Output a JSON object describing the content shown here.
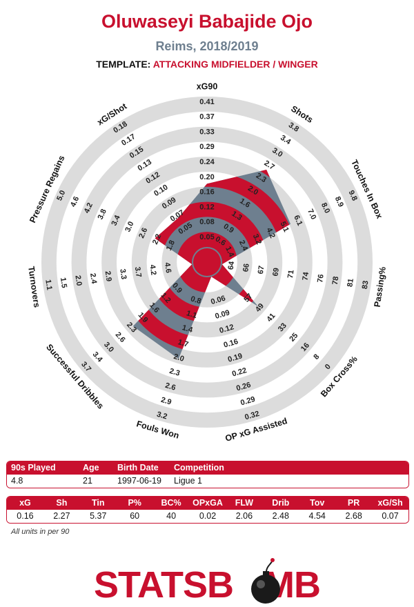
{
  "header": {
    "title": "Oluwaseyi Babajide Ojo",
    "subtitle": "Reims, 2018/2019",
    "template_label": "TEMPLATE:",
    "template_value": "ATTACKING MIDFIELDER / WINGER"
  },
  "colors": {
    "brand_red": "#c8102e",
    "slate": "#6e7f8f",
    "ring_grey": "#dcdcdc"
  },
  "chart_data": {
    "type": "radar",
    "title": "Oluwaseyi Babajide Ojo",
    "axes": [
      {
        "name": "xG90",
        "ticks": [
          "0.05",
          "0.08",
          "0.12",
          "0.16",
          "0.20",
          "0.24",
          "0.29",
          "0.33",
          "0.37",
          "0.41"
        ],
        "value_fraction": 0.42
      },
      {
        "name": "Shots",
        "ticks": [
          "0.6",
          "0.9",
          "1.3",
          "1.6",
          "2.0",
          "2.3",
          "2.7",
          "3.0",
          "3.4",
          "3.8"
        ],
        "value_fraction": 0.63
      },
      {
        "name": "Touches In Box",
        "ticks": [
          "1.4",
          "2.4",
          "3.2",
          "4.2",
          "5.1",
          "6.1",
          "7.0",
          "8.0",
          "8.9",
          "9.8"
        ],
        "value_fraction": 0.51
      },
      {
        "name": "Passing%",
        "ticks": [
          "64",
          "66",
          "67",
          "69",
          "71",
          "74",
          "76",
          "78",
          "81",
          "83"
        ],
        "value_fraction": 0.0
      },
      {
        "name": "Box Cross%",
        "ticks": [
          "57",
          "49",
          "41",
          "33",
          "25",
          "16",
          "8",
          "0"
        ],
        "value_fraction": 0.35
      },
      {
        "name": "OP xG Assisted",
        "ticks": [
          "0.06",
          "0.09",
          "0.12",
          "0.16",
          "0.19",
          "0.22",
          "0.26",
          "0.29",
          "0.32"
        ],
        "value_fraction": 0.0
      },
      {
        "name": "Fouls Won",
        "ticks": [
          "0.8",
          "1.1",
          "1.4",
          "1.7",
          "2.0",
          "2.3",
          "2.6",
          "2.9",
          "3.2"
        ],
        "value_fraction": 0.57
      },
      {
        "name": "Successful Dribbles",
        "ticks": [
          "0.9",
          "1.2",
          "1.6",
          "1.9",
          "2.3",
          "2.6",
          "3.0",
          "3.4",
          "3.7"
        ],
        "value_fraction": 0.55
      },
      {
        "name": "Turnovers",
        "ticks": [
          "4.6",
          "4.2",
          "3.7",
          "3.3",
          "2.9",
          "2.4",
          "2.0",
          "1.5",
          "1.1"
        ],
        "value_fraction": 0.0
      },
      {
        "name": "Pressure Regains",
        "ticks": [
          "1.8",
          "2.2",
          "2.6",
          "3.0",
          "3.4",
          "3.8",
          "4.2",
          "4.6",
          "5.0"
        ],
        "value_fraction": 0.28
      },
      {
        "name": "xG/Shot",
        "ticks": [
          "0.05",
          "0.07",
          "0.09",
          "0.10",
          "0.12",
          "0.13",
          "0.15",
          "0.17",
          "0.18"
        ],
        "value_fraction": 0.25
      }
    ],
    "rings": 10
  },
  "info": {
    "headers": [
      "90s Played",
      "Age",
      "Birth Date",
      "Competition"
    ],
    "values": [
      "4.8",
      "21",
      "1997-06-19",
      "Ligue 1"
    ]
  },
  "stats": {
    "headers": [
      "xG",
      "Sh",
      "Tin",
      "P%",
      "BC%",
      "OPxGA",
      "FLW",
      "Drib",
      "Tov",
      "PR",
      "xG/Sh"
    ],
    "values": [
      "0.16",
      "2.27",
      "5.37",
      "60",
      "40",
      "0.02",
      "2.06",
      "2.48",
      "4.54",
      "2.68",
      "0.07"
    ]
  },
  "footnote": "All units in per 90",
  "logo": {
    "text_left": "STATSB",
    "text_right": "MB"
  }
}
